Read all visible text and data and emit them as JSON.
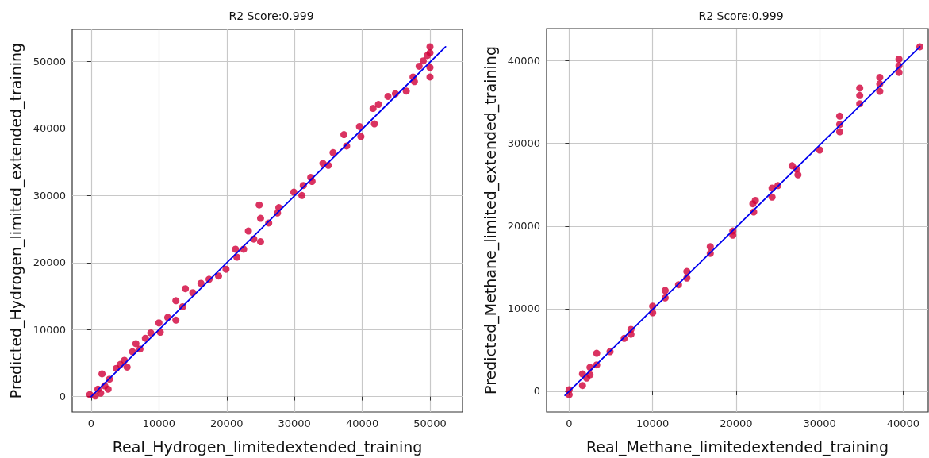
{
  "chart_data": [
    {
      "type": "scatter",
      "title": "R2 Score:0.999",
      "xlabel": "Real_Hydrogen_limitedextended_training",
      "ylabel": "Predicted_Hydrogen_limited_extended_training",
      "xlim": [
        -2800,
        54800
      ],
      "ylim": [
        -2300,
        54800
      ],
      "xticks": [
        0,
        10000,
        20000,
        30000,
        40000,
        50000
      ],
      "yticks": [
        0,
        10000,
        20000,
        30000,
        40000,
        50000
      ],
      "grid": true,
      "series": [
        {
          "marker": "circle",
          "color": "#d1003a",
          "x": [
            -200,
            600,
            1400,
            1000,
            1600,
            2000,
            2500,
            2700,
            3700,
            4300,
            4900,
            5300,
            6100,
            6600,
            7200,
            8000,
            8800,
            10000,
            10200,
            11300,
            12500,
            12500,
            13500,
            13900,
            15000,
            16200,
            17400,
            18800,
            19900,
            21300,
            21500,
            22500,
            23200,
            24000,
            24800,
            25000,
            25000,
            26200,
            27500,
            27700,
            29900,
            31100,
            31300,
            32400,
            32600,
            34200,
            35000,
            35700,
            37300,
            37700,
            39600,
            39800,
            41600,
            42400,
            41800,
            43800,
            44900,
            46500,
            47500,
            47700,
            48400,
            49000,
            50000,
            50000,
            50000,
            50000,
            49600
          ],
          "values": [
            300,
            100,
            500,
            1100,
            3400,
            1600,
            1100,
            2600,
            4200,
            4800,
            5400,
            4400,
            6700,
            7900,
            7100,
            8700,
            9500,
            11000,
            9600,
            11800,
            11400,
            14300,
            13400,
            16100,
            15500,
            16900,
            17500,
            18000,
            19000,
            22000,
            20800,
            22000,
            24700,
            23500,
            28600,
            26600,
            23100,
            25900,
            27400,
            28200,
            30500,
            30000,
            31500,
            32700,
            32100,
            34800,
            34500,
            36400,
            39100,
            37400,
            40300,
            38800,
            43000,
            43600,
            40700,
            44800,
            45200,
            45600,
            47700,
            47000,
            49300,
            50100,
            52200,
            51300,
            49100,
            47700,
            50900
          ]
        },
        {
          "type": "line",
          "marker": "none",
          "color": "#0000ee",
          "x": [
            0,
            52300
          ],
          "values": [
            0,
            52200
          ]
        }
      ]
    },
    {
      "type": "scatter",
      "title": "R2 Score:0.999",
      "xlabel": "Real_Methane_limitedextended_training",
      "ylabel": "Predicted_Methane_limited_extended_training",
      "xlim": [
        -2700,
        43000
      ],
      "ylim": [
        -2500,
        43900
      ],
      "xticks": [
        0,
        10000,
        20000,
        30000,
        40000
      ],
      "yticks": [
        0,
        10000,
        20000,
        30000,
        40000
      ],
      "grid": true,
      "series": [
        {
          "marker": "circle",
          "color": "#d1003a",
          "x": [
            0,
            0,
            1600,
            1600,
            2100,
            2500,
            2500,
            3300,
            3300,
            4900,
            6600,
            7400,
            7400,
            10000,
            10000,
            11500,
            11500,
            13100,
            14100,
            14100,
            16900,
            16900,
            19600,
            19600,
            22000,
            22300,
            22100,
            24300,
            24300,
            25000,
            26700,
            27400,
            27200,
            30000,
            32400,
            32400,
            32400,
            34800,
            34800,
            34800,
            37200,
            37200,
            37200,
            39500,
            39500,
            39500,
            42000
          ],
          "values": [
            200,
            -400,
            700,
            2100,
            1600,
            2900,
            2000,
            3200,
            4600,
            4800,
            6400,
            7500,
            6900,
            10300,
            9500,
            12200,
            11300,
            12900,
            14500,
            13700,
            17500,
            16700,
            19400,
            18900,
            22700,
            23100,
            21700,
            24600,
            23500,
            24900,
            27300,
            26200,
            26900,
            29200,
            33300,
            31400,
            32300,
            36700,
            35800,
            34800,
            38000,
            36300,
            37200,
            40200,
            38600,
            39400,
            41700
          ]
        },
        {
          "type": "line",
          "marker": "none",
          "color": "#0000ee",
          "x": [
            -500,
            42000
          ],
          "values": [
            -500,
            41700
          ]
        }
      ]
    }
  ]
}
